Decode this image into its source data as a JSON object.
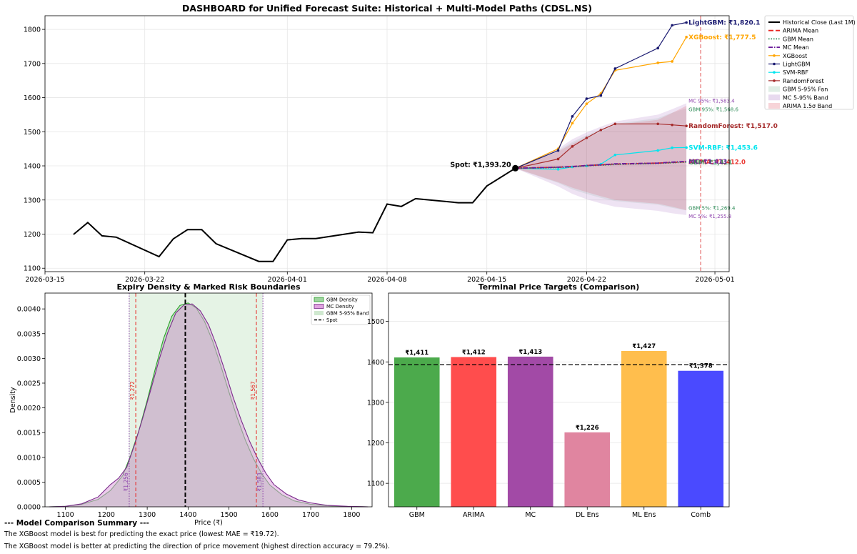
{
  "chart_data": [
    {
      "type": "line",
      "title": "DASHBOARD for Unified Forecast Suite: Historical + Multi-Model Paths (CDSL.NS)",
      "xlabel": "",
      "ylabel": "",
      "x_ticks": [
        "2026-03-15",
        "2026-03-22",
        "2026-04-01",
        "2026-04-08",
        "2026-04-15",
        "2026-04-22",
        "2026-05-01"
      ],
      "y_ticks": [
        1100,
        1200,
        1300,
        1400,
        1500,
        1600,
        1700,
        1800
      ],
      "xlim": [
        "2026-03-15",
        "2026-05-02"
      ],
      "ylim": [
        1090,
        1840
      ],
      "grid": true,
      "legend_position": "outside-right",
      "expiry_line_date": "2026-04-30",
      "spot": {
        "date": "2026-04-17",
        "value": 1393.2,
        "label": "Spot: ₹1,393.20"
      },
      "historical": {
        "name": "Historical Close (Last 1M)",
        "color": "#000000",
        "points": [
          [
            "2026-03-17",
            1199
          ],
          [
            "2026-03-18",
            1234
          ],
          [
            "2026-03-19",
            1195
          ],
          [
            "2026-03-20",
            1191
          ],
          [
            "2026-03-23",
            1134
          ],
          [
            "2026-03-24",
            1186
          ],
          [
            "2026-03-25",
            1213
          ],
          [
            "2026-03-26",
            1213
          ],
          [
            "2026-03-27",
            1172
          ],
          [
            "2026-03-30",
            1120
          ],
          [
            "2026-03-31",
            1120
          ],
          [
            "2026-04-01",
            1183
          ],
          [
            "2026-04-02",
            1187
          ],
          [
            "2026-04-03",
            1187
          ],
          [
            "2026-04-06",
            1206
          ],
          [
            "2026-04-07",
            1204
          ],
          [
            "2026-04-08",
            1288
          ],
          [
            "2026-04-09",
            1281
          ],
          [
            "2026-04-10",
            1304
          ],
          [
            "2026-04-13",
            1292
          ],
          [
            "2026-04-14",
            1292
          ],
          [
            "2026-04-15",
            1341
          ],
          [
            "2026-04-17",
            1393.2
          ]
        ]
      },
      "forecast_dates": [
        "2026-04-17",
        "2026-04-20",
        "2026-04-21",
        "2026-04-22",
        "2026-04-23",
        "2026-04-24",
        "2026-04-27",
        "2026-04-28",
        "2026-04-29"
      ],
      "models": [
        {
          "name": "XGBoost",
          "color": "#ffa500",
          "label": "XGBoost: ₹1,777.5",
          "values": [
            1393,
            1450,
            1525,
            1582,
            1612,
            1680,
            1702,
            1706,
            1777.5
          ]
        },
        {
          "name": "LightGBM",
          "color": "#191970",
          "label": "LightGBM: ₹1,820.1",
          "values": [
            1393,
            1445,
            1545,
            1597,
            1606,
            1685,
            1745,
            1812,
            1820.1
          ]
        },
        {
          "name": "SVM-RBF",
          "color": "#00e5ee",
          "label": "SVM-RBF: ₹1,453.6",
          "values": [
            1393,
            1390,
            1397,
            1400,
            1405,
            1432,
            1445,
            1453,
            1453.6
          ]
        },
        {
          "name": "RandomForest",
          "color": "#a52a2a",
          "label": "RandomForest: ₹1,517.0",
          "values": [
            1393,
            1420,
            1457,
            1482,
            1505,
            1523,
            1523,
            1520,
            1517.0
          ]
        }
      ],
      "means": [
        {
          "name": "ARIMA Mean",
          "color": "#e8231e",
          "style": "dashed",
          "label": "ARIMA: ₹1,412.0",
          "values": [
            1393,
            1396,
            1398,
            1401,
            1403,
            1405,
            1408,
            1410,
            1412
          ]
        },
        {
          "name": "GBM Mean",
          "color": "#2e8b57",
          "style": "dotted",
          "label": "GBM: ₹1,411",
          "values": [
            1393,
            1395,
            1397,
            1400,
            1402,
            1404,
            1407,
            1409,
            1411
          ]
        },
        {
          "name": "MC Mean",
          "color": "#6a1b9a",
          "style": "dashdot",
          "label": "MC: ₹1,413",
          "values": [
            1393,
            1396,
            1398,
            1401,
            1403,
            1406,
            1408,
            1411,
            1413
          ]
        }
      ],
      "bands": [
        {
          "name": "GBM 5-95% Fan",
          "color": "#2e8b57",
          "opacity": 0.1,
          "upper": [
            1393,
            1445,
            1470,
            1490,
            1507,
            1523,
            1540,
            1556,
            1568.6
          ],
          "lower": [
            1393,
            1350,
            1331,
            1318,
            1306,
            1297,
            1286,
            1277,
            1269.4
          ],
          "upper_label": "GBM 95%: ₹1,568.6",
          "lower_label": "GBM 5%: ₹1,269.4"
        },
        {
          "name": "MC 5-95% Band",
          "color": "#8e44ad",
          "opacity": 0.15,
          "upper": [
            1393,
            1450,
            1478,
            1498,
            1515,
            1530,
            1550,
            1566,
            1583.4
          ],
          "lower": [
            1393,
            1340,
            1318,
            1302,
            1290,
            1280,
            1268,
            1261,
            1255.8
          ],
          "upper_label": "MC 95%: ₹1,583.4",
          "lower_label": "MC 5%: ₹1,255.8"
        },
        {
          "name": "ARIMA 1.5σ Band",
          "color": "#e06070",
          "opacity": 0.22,
          "upper": [
            1393,
            1442,
            1465,
            1483,
            1500,
            1520,
            1535,
            1555,
            1576
          ],
          "lower": [
            1393,
            1352,
            1336,
            1323,
            1311,
            1300,
            1289,
            1280,
            1270
          ]
        }
      ]
    },
    {
      "type": "area",
      "title": "Expiry Density & Marked Risk Boundaries",
      "xlabel": "Price (₹)",
      "ylabel": "Density",
      "xlim": [
        1050,
        1850
      ],
      "ylim": [
        0,
        0.00432
      ],
      "x_ticks": [
        1100,
        1200,
        1300,
        1400,
        1500,
        1600,
        1700,
        1800
      ],
      "y_ticks": [
        "0.0000",
        "0.0005",
        "0.0010",
        "0.0015",
        "0.0020",
        "0.0025",
        "0.0030",
        "0.0035",
        "0.0040"
      ],
      "y_tick_values": [
        0,
        0.0005,
        0.001,
        0.0015,
        0.002,
        0.0025,
        0.003,
        0.0035,
        0.004
      ],
      "legend_position": "top-right",
      "gbm_band": [
        1256,
        1583
      ],
      "spot": 1393.2,
      "markers": [
        {
          "value": 1272,
          "label": "₹1,272",
          "color": "#e8231e",
          "style": "dashed",
          "label_y": 0.00235
        },
        {
          "value": 1567,
          "label": "₹1,567",
          "color": "#e8231e",
          "style": "dashed",
          "label_y": 0.00235
        },
        {
          "value": 1256,
          "label": "₹1,256",
          "color": "#8e44ad",
          "style": "dotted",
          "label_y": 0.0005
        },
        {
          "value": 1583,
          "label": "₹1,583",
          "color": "#8e44ad",
          "style": "dotted",
          "label_y": 0.0005
        }
      ],
      "series": [
        {
          "name": "GBM Density",
          "color": "#2ca02c",
          "fill": "#9fd39f",
          "points": [
            [
              1060,
              0
            ],
            [
              1100,
              1e-05
            ],
            [
              1140,
              5e-05
            ],
            [
              1180,
              0.00015
            ],
            [
              1210,
              0.00033
            ],
            [
              1240,
              0.00063
            ],
            [
              1260,
              0.00105
            ],
            [
              1280,
              0.00155
            ],
            [
              1300,
              0.00215
            ],
            [
              1320,
              0.0028
            ],
            [
              1340,
              0.0034
            ],
            [
              1360,
              0.00385
            ],
            [
              1380,
              0.00407
            ],
            [
              1400,
              0.00412
            ],
            [
              1420,
              0.00402
            ],
            [
              1440,
              0.00375
            ],
            [
              1460,
              0.00335
            ],
            [
              1480,
              0.00285
            ],
            [
              1500,
              0.00232
            ],
            [
              1520,
              0.0018
            ],
            [
              1540,
              0.00135
            ],
            [
              1560,
              0.00097
            ],
            [
              1580,
              0.00067
            ],
            [
              1600,
              0.00044
            ],
            [
              1630,
              0.00024
            ],
            [
              1660,
              0.00012
            ],
            [
              1700,
              5e-05
            ],
            [
              1760,
              1e-05
            ],
            [
              1840,
              0
            ]
          ]
        },
        {
          "name": "MC Density",
          "color": "#7b2d8b",
          "fill": "#dfa3df",
          "points": [
            [
              1060,
              0
            ],
            [
              1100,
              1e-05
            ],
            [
              1140,
              6e-05
            ],
            [
              1180,
              0.0002
            ],
            [
              1210,
              0.00045
            ],
            [
              1230,
              0.00058
            ],
            [
              1250,
              0.0008
            ],
            [
              1270,
              0.00128
            ],
            [
              1290,
              0.00182
            ],
            [
              1310,
              0.0024
            ],
            [
              1330,
              0.003
            ],
            [
              1350,
              0.00352
            ],
            [
              1370,
              0.00392
            ],
            [
              1390,
              0.00408
            ],
            [
              1410,
              0.0041
            ],
            [
              1430,
              0.00396
            ],
            [
              1450,
              0.00368
            ],
            [
              1470,
              0.00325
            ],
            [
              1490,
              0.00275
            ],
            [
              1510,
              0.00222
            ],
            [
              1530,
              0.00175
            ],
            [
              1550,
              0.00133
            ],
            [
              1570,
              0.00098
            ],
            [
              1590,
              0.00068
            ],
            [
              1610,
              0.00045
            ],
            [
              1640,
              0.00026
            ],
            [
              1670,
              0.00014
            ],
            [
              1700,
              8e-05
            ],
            [
              1740,
              3e-05
            ],
            [
              1790,
              1e-05
            ],
            [
              1840,
              0
            ]
          ]
        }
      ],
      "legend": [
        "GBM Density",
        "MC Density",
        "GBM 5-95% Band",
        "Spot"
      ]
    },
    {
      "type": "bar",
      "title": "Terminal Price Targets (Comparison)",
      "categories": [
        "GBM",
        "ARIMA",
        "MC",
        "DL Ens",
        "ML Ens",
        "Comb"
      ],
      "values": [
        1411,
        1412,
        1413,
        1226,
        1427,
        1378
      ],
      "labels": [
        "₹1,411",
        "₹1,412",
        "₹1,413",
        "₹1,226",
        "₹1,427",
        "₹1,378"
      ],
      "colors": [
        "#4caa4c",
        "#ff4d4d",
        "#a24aa6",
        "#e085a0",
        "#ffbe4d",
        "#4a4aff"
      ],
      "ylim": [
        1042,
        1570
      ],
      "y_ticks": [
        1100,
        1200,
        1300,
        1400,
        1500
      ],
      "spot": 1393.2,
      "xlabel": "",
      "ylabel": ""
    }
  ],
  "summary": {
    "title": "--- Model Comparison Summary ---",
    "line1": "The XGBoost model is best for predicting the exact price (lowest MAE = ₹19.72).",
    "line2": "The XGBoost model is better at predicting the direction of price movement (highest direction accuracy = 79.2%)."
  }
}
